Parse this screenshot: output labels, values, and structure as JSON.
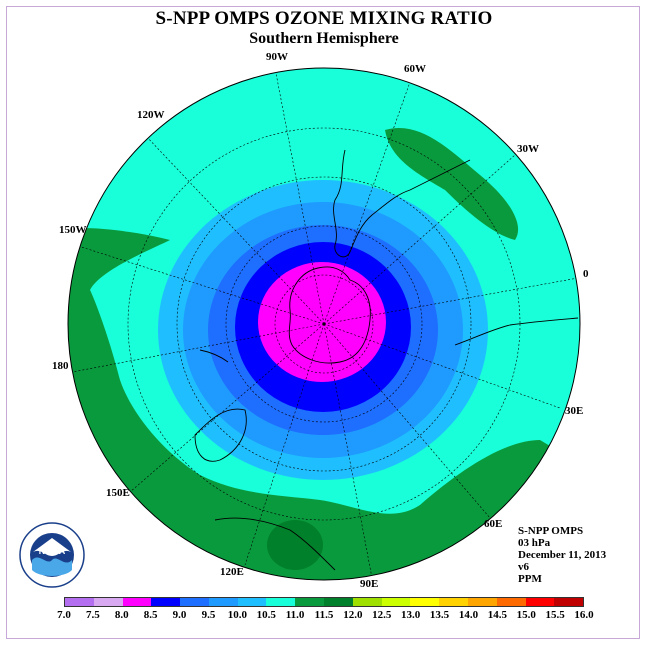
{
  "title": "S-NPP OMPS OZONE MIXING RATIO",
  "subtitle": "Southern Hemisphere",
  "longitude_labels": [
    {
      "text": "90W",
      "key": "lon_90w"
    },
    {
      "text": "60W",
      "key": "lon_60w"
    },
    {
      "text": "120W",
      "key": "lon_120w"
    },
    {
      "text": "30W",
      "key": "lon_30w"
    },
    {
      "text": "150W",
      "key": "lon_150w"
    },
    {
      "text": "0",
      "key": "lon_0"
    },
    {
      "text": "180",
      "key": "lon_180"
    },
    {
      "text": "30E",
      "key": "lon_30e"
    },
    {
      "text": "150E",
      "key": "lon_150e"
    },
    {
      "text": "60E",
      "key": "lon_60e"
    },
    {
      "text": "120E",
      "key": "lon_120e"
    },
    {
      "text": "90E",
      "key": "lon_90e"
    }
  ],
  "info": {
    "instrument": "S-NPP OMPS",
    "level": "03 hPa",
    "date": "December 11, 2013",
    "version": "v6",
    "units": "PPM"
  },
  "logo": {
    "text": "NOAA",
    "icon": "noaa-logo-icon"
  },
  "colorbar": {
    "labels": [
      "7.0",
      "7.5",
      "8.0",
      "8.5",
      "9.0",
      "9.5",
      "10.0",
      "10.5",
      "11.0",
      "11.5",
      "12.0",
      "12.5",
      "13.0",
      "13.5",
      "14.0",
      "14.5",
      "15.0",
      "15.5",
      "16.0"
    ],
    "colors": [
      "#b36ff0",
      "#d8a8f0",
      "#ff00ff",
      "#0000ff",
      "#1e6eff",
      "#1f9bff",
      "#1fbfff",
      "#19ffd9",
      "#0a9a3e",
      "#00802a",
      "#a0e000",
      "#ccff00",
      "#ffff00",
      "#ffd200",
      "#ffa500",
      "#ff6a00",
      "#ff0000",
      "#c00000",
      "#8b5a2b"
    ]
  },
  "contour_colors": {
    "outer_green": "#0a9a3e",
    "cyan": "#19ffd9",
    "light_blue": "#1fbfff",
    "mid_blue": "#1f9bff",
    "blue": "#1e6eff",
    "deep_blue": "#0000ff",
    "magenta": "#ff00ff",
    "dark_green": "#00802a"
  }
}
